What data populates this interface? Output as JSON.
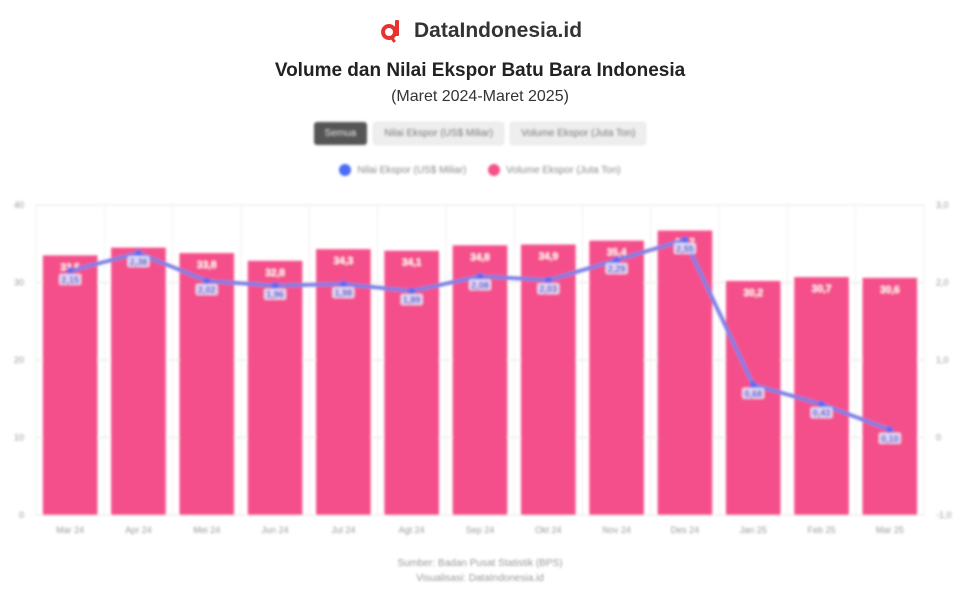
{
  "brand": {
    "name": "DataIndonesia.id",
    "logo_color": "#e8322f",
    "logo_icon": "magnifier-logo-icon"
  },
  "header": {
    "title": "Volume dan Nilai Ekspor Batu Bara Indonesia",
    "subtitle": "(Maret 2024-Maret 2025)"
  },
  "tabs": [
    {
      "label": "Semua",
      "active": true
    },
    {
      "label": "Nilai Ekspor (US$ Miliar)",
      "active": false
    },
    {
      "label": "Volume Ekspor (Juta Ton)",
      "active": false
    }
  ],
  "legend": [
    {
      "label": "Nilai Ekspor (US$ Miliar)",
      "color": "#4a6cf7"
    },
    {
      "label": "Volume Ekspor (Juta Ton)",
      "color": "#f4508a"
    }
  ],
  "footer": {
    "line1": "Sumber: Badan Pusat Statistik (BPS)",
    "line2": "Visualisasi: DataIndonesia.id"
  },
  "chart_data": {
    "type": "bar",
    "categories": [
      "Mar 24",
      "Apr 24",
      "Mei 24",
      "Jun 24",
      "Jul 24",
      "Agt 24",
      "Sep 24",
      "Okt 24",
      "Nov 24",
      "Des 24",
      "Jan 25",
      "Feb 25",
      "Mar 25"
    ],
    "series": [
      {
        "name": "Volume Ekspor (Juta Ton)",
        "type": "bar",
        "axis": "left",
        "color": "#f4508a",
        "values": [
          33.5,
          34.5,
          33.8,
          32.8,
          34.3,
          34.1,
          34.8,
          34.9,
          35.4,
          36.7,
          30.2,
          30.7,
          30.6
        ],
        "labels": [
          "33,5",
          "34,5",
          "33,8",
          "32,8",
          "34,3",
          "34,1",
          "34,8",
          "34,9",
          "35,4",
          "36,7",
          "30,2",
          "30,7",
          "30,6"
        ]
      },
      {
        "name": "Nilai Ekspor (US$ Miliar)",
        "type": "line",
        "axis": "right",
        "color": "#7b7fe6",
        "values": [
          2.15,
          2.38,
          2.02,
          1.96,
          1.98,
          1.89,
          2.08,
          2.03,
          2.29,
          2.55,
          0.68,
          0.43,
          0.1
        ],
        "labels": [
          "2,15",
          "2,38",
          "2,02",
          "1,96",
          "1,98",
          "1,89",
          "2,08",
          "2,03",
          "2,29",
          "2,55",
          "0,68",
          "0,43",
          "0,10"
        ]
      }
    ],
    "left_axis": {
      "min": 0,
      "max": 40,
      "ticks": [
        "0",
        "10",
        "20",
        "30",
        "40"
      ]
    },
    "right_axis": {
      "min": -1,
      "max": 3,
      "ticks": [
        "-1,0",
        "0",
        "1,0",
        "2,0",
        "3,0"
      ]
    },
    "grid": true
  }
}
